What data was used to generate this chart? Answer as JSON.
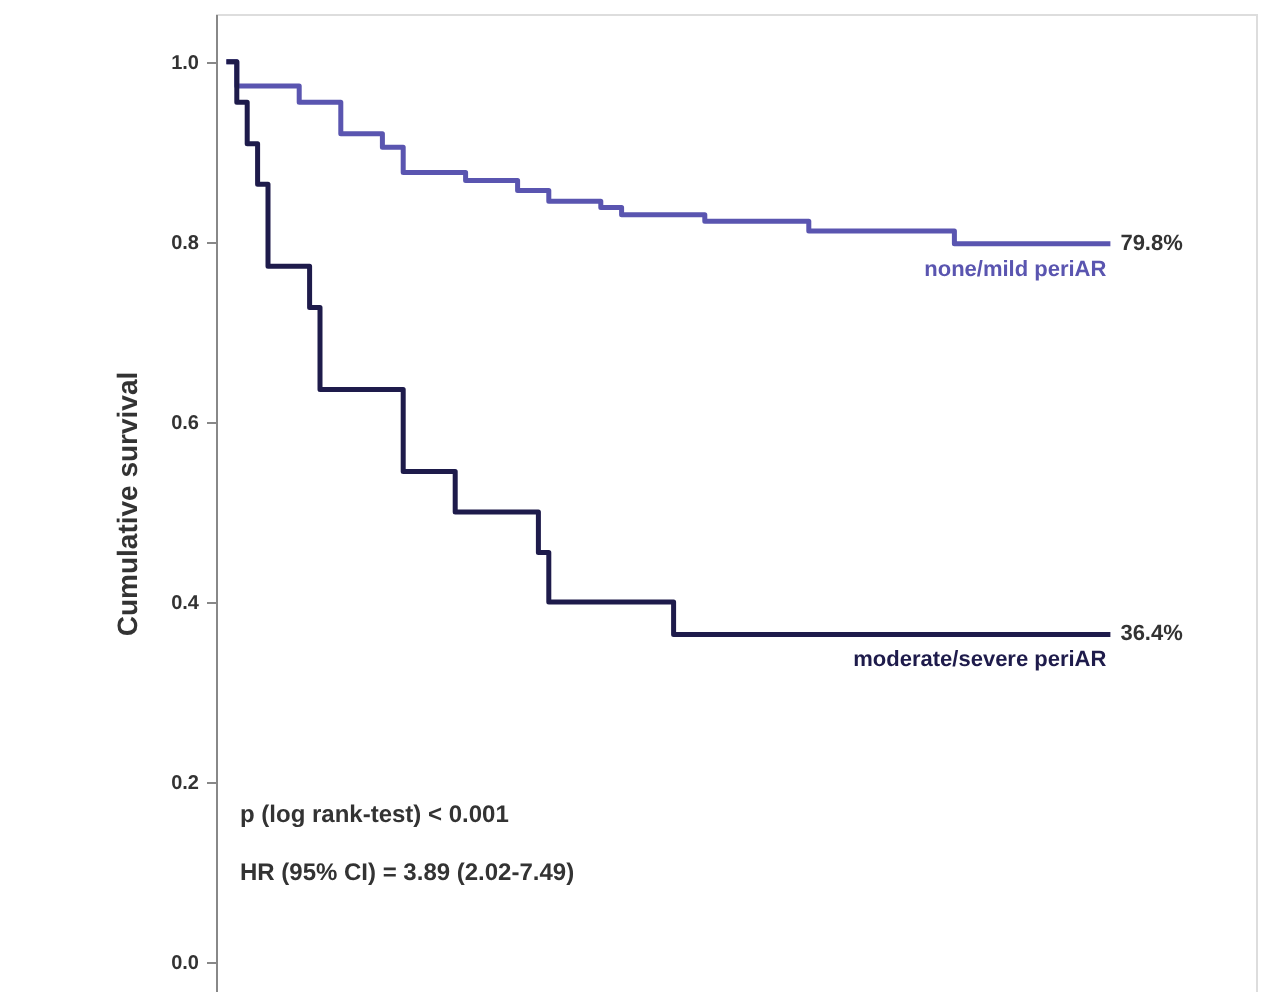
{
  "chart_data": {
    "type": "step",
    "ylabel": "Cumulative survival",
    "categories": [
      null,
      null,
      null,
      null,
      null,
      null,
      null,
      null,
      null,
      null,
      null,
      null,
      null,
      null,
      null,
      null,
      null,
      null,
      null,
      null,
      null,
      null,
      null,
      null,
      null,
      null,
      null,
      null,
      null,
      null,
      null,
      null,
      null,
      null,
      null,
      null,
      null,
      null,
      null,
      null,
      null,
      null,
      null,
      null,
      null,
      null,
      null,
      null,
      null,
      null,
      null,
      null,
      null,
      null,
      null,
      null,
      null,
      null,
      null,
      null,
      null,
      null,
      null,
      null,
      null,
      null,
      null,
      null,
      null,
      null,
      null,
      null,
      null,
      null,
      null,
      null,
      null,
      null,
      null,
      null,
      null,
      null,
      null,
      null,
      null,
      null
    ],
    "ylim": [
      -0.033,
      1.053
    ],
    "yticks": [
      {
        "value": 0,
        "label": "0.0"
      },
      {
        "value": 0.2,
        "label": "0.2"
      },
      {
        "value": 0.4,
        "label": "0.4"
      },
      {
        "value": 0.6,
        "label": "0.6"
      },
      {
        "value": 0.8,
        "label": "0.8"
      },
      {
        "value": 1,
        "label": "1.0"
      }
    ],
    "tick_labels": "y",
    "grid": false,
    "marker": "none",
    "line_style": "solid",
    "series": [
      {
        "name": "none/mild periAR",
        "color": "#5a55b0",
        "value_labels": [
          null,
          null,
          null,
          null,
          null,
          null,
          null,
          null,
          null,
          null,
          null,
          null,
          null,
          null,
          null,
          null,
          null,
          null,
          null,
          null,
          null,
          null,
          null,
          null,
          null,
          null,
          null,
          null,
          null,
          null,
          null,
          null,
          null,
          null,
          null,
          null,
          null,
          null,
          null,
          null,
          null,
          null,
          null,
          null,
          null,
          null,
          null,
          null,
          null,
          null,
          null,
          null,
          null,
          null,
          null,
          null,
          null,
          null,
          null,
          null,
          null,
          null,
          null,
          null,
          null,
          null,
          null,
          null,
          null,
          null,
          null,
          null,
          null,
          null,
          null,
          null,
          null,
          null,
          null,
          null,
          null,
          null,
          null,
          null,
          null,
          "79.8%"
        ],
        "values": [
          1.0,
          0.973,
          0.973,
          0.973,
          0.973,
          0.973,
          0.973,
          0.955,
          0.955,
          0.955,
          0.955,
          0.92,
          0.92,
          0.92,
          0.92,
          0.905,
          0.905,
          0.877,
          0.877,
          0.877,
          0.877,
          0.877,
          0.877,
          0.868,
          0.868,
          0.868,
          0.868,
          0.868,
          0.857,
          0.857,
          0.857,
          0.845,
          0.845,
          0.845,
          0.845,
          0.845,
          0.838,
          0.838,
          0.83,
          0.83,
          0.83,
          0.83,
          0.83,
          0.83,
          0.83,
          0.83,
          0.823,
          0.823,
          0.823,
          0.823,
          0.823,
          0.823,
          0.823,
          0.823,
          0.823,
          0.823,
          0.812,
          0.812,
          0.812,
          0.812,
          0.812,
          0.812,
          0.812,
          0.812,
          0.812,
          0.812,
          0.812,
          0.812,
          0.812,
          0.812,
          0.798,
          0.798,
          0.798,
          0.798,
          0.798,
          0.798,
          0.798,
          0.798,
          0.798,
          0.798,
          0.798,
          0.798,
          0.798,
          0.798,
          0.798,
          0.798
        ]
      },
      {
        "name": "moderate/severe periAR",
        "color": "#1e1b4b",
        "value_labels": [
          null,
          null,
          null,
          null,
          null,
          null,
          null,
          null,
          null,
          null,
          null,
          null,
          null,
          null,
          null,
          null,
          null,
          null,
          null,
          null,
          null,
          null,
          null,
          null,
          null,
          null,
          null,
          null,
          null,
          null,
          null,
          null,
          null,
          null,
          null,
          null,
          null,
          null,
          null,
          null,
          null,
          null,
          null,
          null,
          null,
          null,
          null,
          null,
          null,
          null,
          null,
          null,
          null,
          null,
          null,
          null,
          null,
          null,
          null,
          null,
          null,
          null,
          null,
          null,
          null,
          null,
          null,
          null,
          null,
          null,
          null,
          null,
          null,
          null,
          null,
          null,
          null,
          null,
          null,
          null,
          null,
          null,
          null,
          null,
          null,
          "36.4%"
        ],
        "values": [
          1.0,
          0.955,
          0.909,
          0.864,
          0.773,
          0.773,
          0.773,
          0.773,
          0.727,
          0.636,
          0.636,
          0.636,
          0.636,
          0.636,
          0.636,
          0.636,
          0.636,
          0.545,
          0.545,
          0.545,
          0.545,
          0.545,
          0.5,
          0.5,
          0.5,
          0.5,
          0.5,
          0.5,
          0.5,
          0.5,
          0.455,
          0.4,
          0.4,
          0.4,
          0.4,
          0.4,
          0.4,
          0.4,
          0.4,
          0.4,
          0.4,
          0.4,
          0.4,
          0.364,
          0.364,
          0.364,
          0.364,
          0.364,
          0.364,
          0.364,
          0.364,
          0.364,
          0.364,
          0.364,
          0.364,
          0.364,
          0.364,
          0.364,
          0.364,
          0.364,
          0.364,
          0.364,
          0.364,
          0.364,
          0.364,
          0.364,
          0.364,
          0.364,
          0.364,
          0.364,
          0.364,
          0.364,
          0.364,
          0.364,
          0.364,
          0.364,
          0.364,
          0.364,
          0.364,
          0.364,
          0.364,
          0.364,
          0.364,
          0.364,
          0.364,
          0.364
        ]
      }
    ],
    "annotations": [
      "p (log rank-test) < 0.001",
      "HR (95% CI) = 3.89 (2.02-7.49)"
    ]
  }
}
